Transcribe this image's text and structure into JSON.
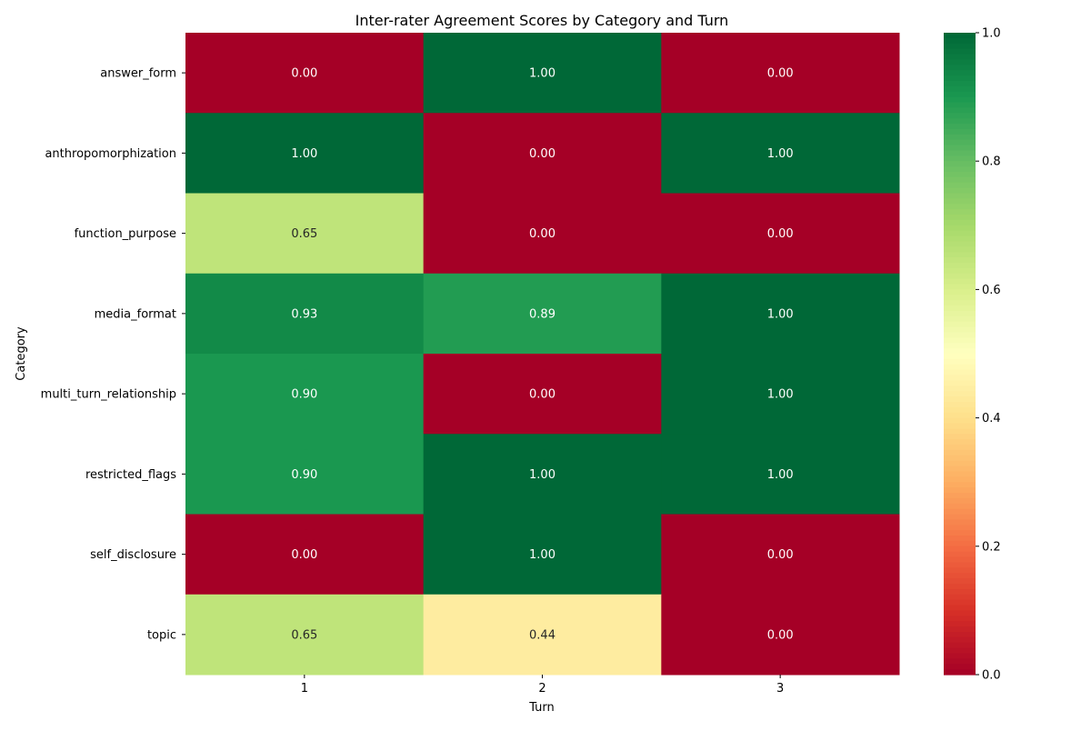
{
  "chart_data": {
    "type": "heatmap",
    "title": "Inter-rater Agreement Scores by Category and Turn",
    "xlabel": "Turn",
    "ylabel": "Category",
    "x_categories": [
      "1",
      "2",
      "3"
    ],
    "y_categories": [
      "answer_form",
      "anthropomorphization",
      "function_purpose",
      "media_format",
      "multi_turn_relationship",
      "restricted_flags",
      "self_disclosure",
      "topic"
    ],
    "values": [
      [
        0.0,
        1.0,
        0.0
      ],
      [
        1.0,
        0.0,
        1.0
      ],
      [
        0.65,
        0.0,
        0.0
      ],
      [
        0.93,
        0.89,
        1.0
      ],
      [
        0.9,
        0.0,
        1.0
      ],
      [
        0.9,
        1.0,
        1.0
      ],
      [
        0.0,
        1.0,
        0.0
      ],
      [
        0.65,
        0.44,
        0.0
      ]
    ],
    "annotation_format": "2 decimals",
    "colormap": "RdYlGn",
    "vmin": 0.0,
    "vmax": 1.0,
    "colorbar": {
      "ticks": [
        0.0,
        0.2,
        0.4,
        0.6,
        0.8,
        1.0
      ],
      "tick_labels": [
        "0.0",
        "0.2",
        "0.4",
        "0.6",
        "0.8",
        "1.0"
      ]
    },
    "grid": false,
    "legend": "colorbar-right"
  }
}
